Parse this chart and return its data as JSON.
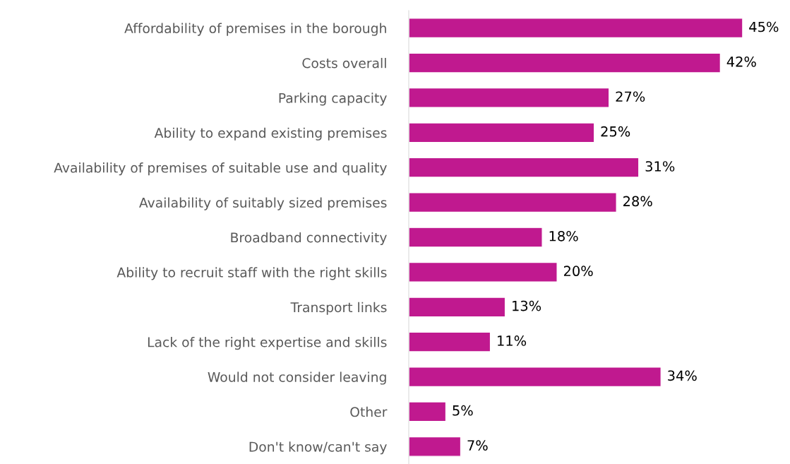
{
  "chart_data": {
    "type": "bar",
    "orientation": "horizontal",
    "categories": [
      "Affordability of premises in the borough",
      "Costs overall",
      "Parking capacity",
      "Ability to expand existing premises",
      "Availability of premises of suitable use and quality",
      "Availability of suitably sized premises",
      "Broadband connectivity",
      "Ability to recruit staff with the right skills",
      "Transport links",
      "Lack of the right expertise and skills",
      "Would not consider leaving",
      "Other",
      "Don't know/can't say"
    ],
    "values": [
      45,
      42,
      27,
      25,
      31,
      28,
      18,
      20,
      13,
      11,
      34,
      5,
      7
    ],
    "value_labels": [
      "45%",
      "42%",
      "27%",
      "25%",
      "31%",
      "28%",
      "18%",
      "20%",
      "13%",
      "11%",
      "34%",
      "5%",
      "7%"
    ],
    "color": "#c0198f",
    "grid": false,
    "legend": false
  }
}
